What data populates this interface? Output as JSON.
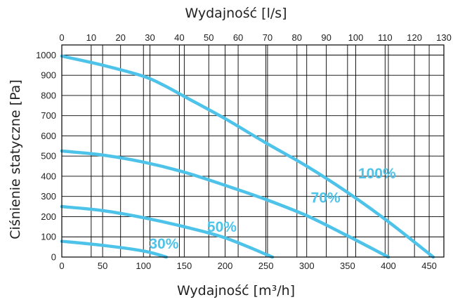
{
  "chart_data": {
    "type": "line",
    "title": "",
    "top_axis": {
      "label": "Wydajność [l/s]",
      "ticks": [
        "0",
        "10",
        "20",
        "30",
        "40",
        "50",
        "60",
        "70",
        "80",
        "90",
        "100",
        "110",
        "120",
        "130"
      ],
      "range": [
        0,
        130
      ]
    },
    "xlabel": "Wydajność [m³/h]",
    "ylabel": "Ciśnienie statyczne [Pa]",
    "x_ticks": [
      "0",
      "50",
      "100",
      "150",
      "200",
      "250",
      "300",
      "350",
      "400",
      "450"
    ],
    "y_ticks": [
      "0",
      "100",
      "200",
      "300",
      "400",
      "500",
      "600",
      "700",
      "800",
      "900",
      "1000"
    ],
    "xlim": [
      0,
      468
    ],
    "ylim": [
      0,
      1050
    ],
    "grid": true,
    "legend": "none",
    "color": "#4ec3ea",
    "series": [
      {
        "name": "100%",
        "x": [
          0,
          50,
          100,
          125,
          150,
          200,
          250,
          300,
          350,
          400,
          455
        ],
        "y": [
          995,
          950,
          895,
          850,
          795,
          685,
          565,
          450,
          320,
          175,
          0
        ]
      },
      {
        "name": "70%",
        "x": [
          0,
          50,
          100,
          150,
          200,
          250,
          300,
          350,
          400
        ],
        "y": [
          525,
          505,
          470,
          420,
          355,
          285,
          205,
          105,
          0
        ]
      },
      {
        "name": "50%",
        "x": [
          0,
          50,
          100,
          150,
          200,
          258
        ],
        "y": [
          250,
          230,
          195,
          150,
          95,
          0
        ]
      },
      {
        "name": "30%",
        "x": [
          0,
          50,
          100,
          128
        ],
        "y": [
          78,
          58,
          30,
          0
        ]
      }
    ],
    "annotations": [
      {
        "text": "100%",
        "series": "100%",
        "x": 363,
        "y": 390
      },
      {
        "text": "70%",
        "series": "70%",
        "x": 305,
        "y": 270
      },
      {
        "text": "50%",
        "series": "50%",
        "x": 178,
        "y": 125
      },
      {
        "text": "30%",
        "series": "30%",
        "x": 107,
        "y": 42
      }
    ]
  }
}
